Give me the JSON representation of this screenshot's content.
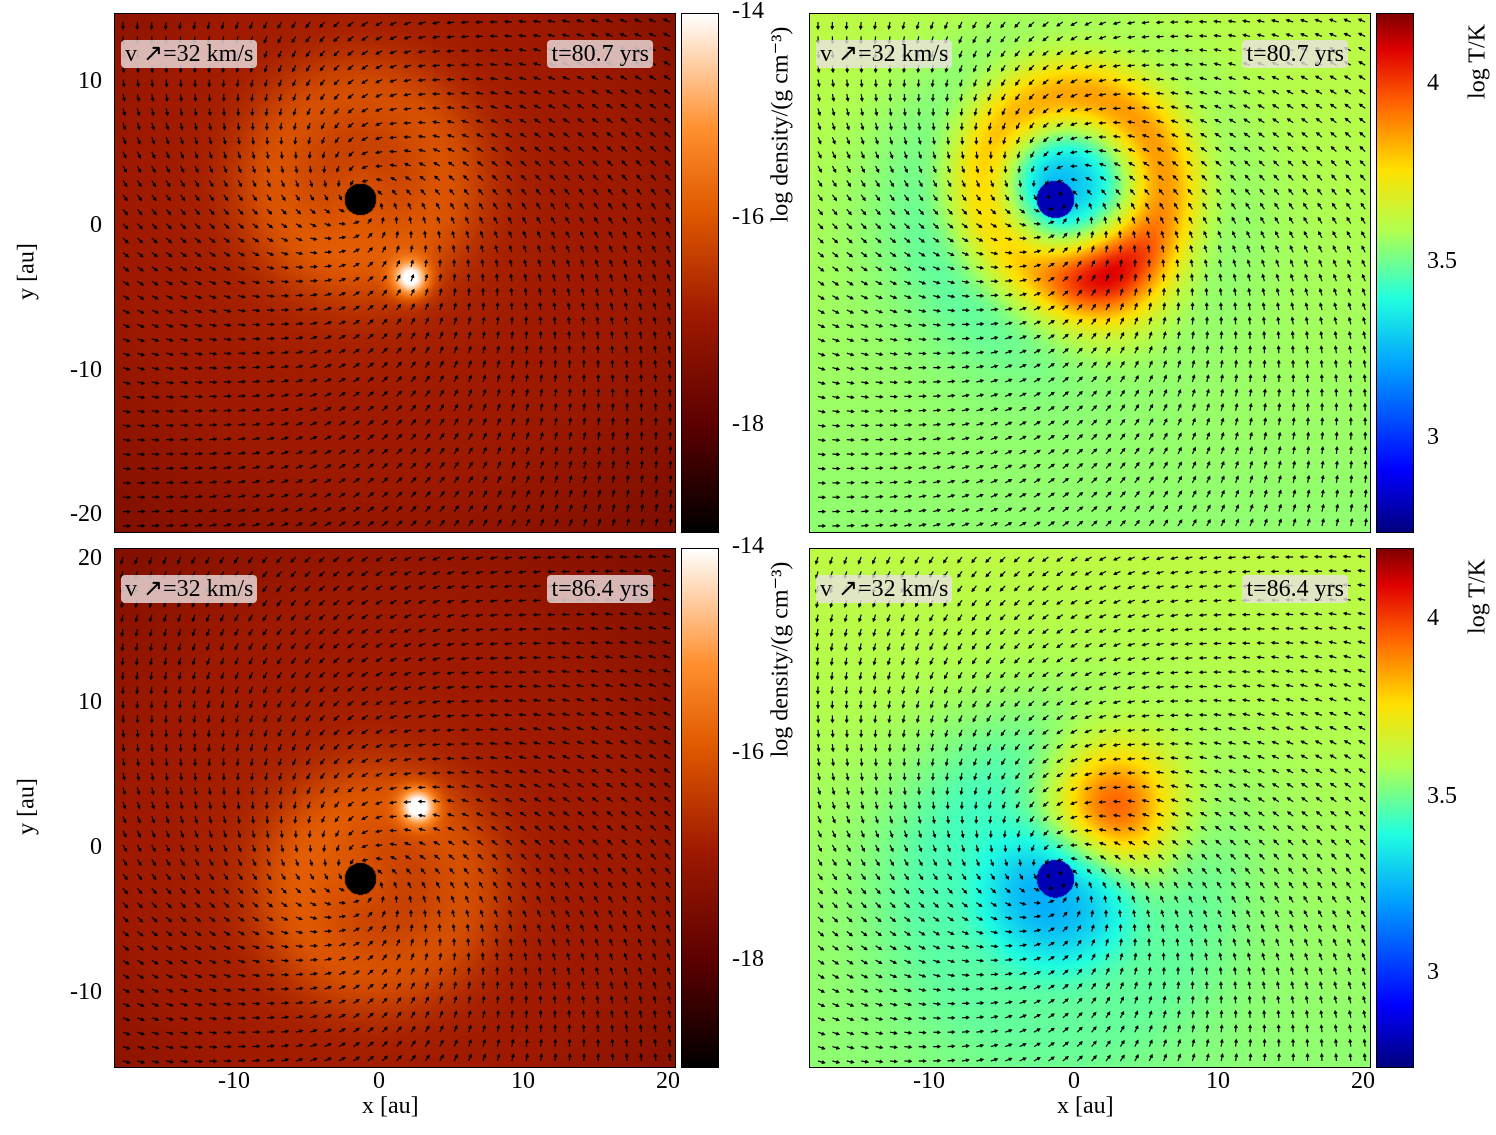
{
  "chart_data": [
    {
      "type": "heatmap",
      "panel": "top-left",
      "quantity": "density",
      "time_label": "t=80.7 yrs",
      "velocity_label": "v ↗=32 km/s",
      "ylabel": "y [au]",
      "xlim": [
        -18.5,
        20.5
      ],
      "ylim": [
        -21.2,
        14.8
      ],
      "yticks": [
        "10",
        "0",
        "-10",
        "-20"
      ],
      "star_pos": [
        -1.5,
        2
      ],
      "companion_pos": [
        2,
        -3.5
      ]
    },
    {
      "type": "heatmap",
      "panel": "top-right",
      "quantity": "temperature",
      "time_label": "t=80.7 yrs",
      "velocity_label": "v ↗=32 km/s",
      "xlim": [
        -18.5,
        20.5
      ],
      "ylim": [
        -21.2,
        14.8
      ],
      "star_pos": [
        -1.5,
        2
      ],
      "companion_pos": [
        2,
        -3.5
      ]
    },
    {
      "type": "heatmap",
      "panel": "bottom-left",
      "quantity": "density",
      "time_label": "t=86.4 yrs",
      "velocity_label": "v ↗=32 km/s",
      "ylabel": "y [au]",
      "xlabel": "x [au]",
      "xlim": [
        -18.5,
        20.5
      ],
      "ylim": [
        -15.2,
        20.8
      ],
      "yticks": [
        "20",
        "10",
        "0",
        "-10"
      ],
      "xticks": [
        "-10",
        "0",
        "10",
        "20"
      ],
      "star_pos": [
        -1.5,
        -2
      ],
      "companion_pos": [
        2.5,
        3
      ]
    },
    {
      "type": "heatmap",
      "panel": "bottom-right",
      "quantity": "temperature",
      "time_label": "t=86.4 yrs",
      "velocity_label": "v ↗=32 km/s",
      "xlabel": "x [au]",
      "xlim": [
        -18.5,
        20.5
      ],
      "ylim": [
        -15.2,
        20.8
      ],
      "xticks": [
        "-10",
        "0",
        "10",
        "20"
      ],
      "star_pos": [
        -1.5,
        -2
      ],
      "companion_pos": [
        2.5,
        3
      ]
    }
  ],
  "colorbars": {
    "density": {
      "label": "log density/(g cm⁻³)",
      "ticks": [
        "-14",
        "-16",
        "-18"
      ],
      "range": [
        -19.1,
        -14
      ]
    },
    "temperature": {
      "label": "log T/K",
      "ticks": [
        "4",
        "3.5",
        "3"
      ],
      "range": [
        2.73,
        4.2
      ]
    }
  }
}
